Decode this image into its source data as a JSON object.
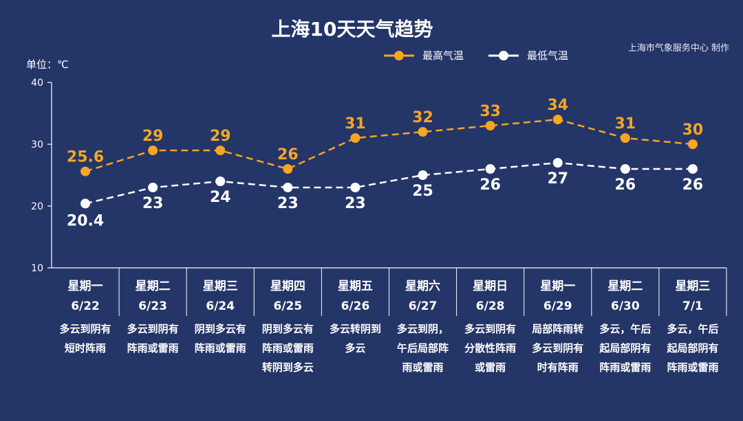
{
  "header": {
    "title": "上海10天天气趋势",
    "credit": "上海市气象服务中心 制作",
    "unit_label": "单位：℃"
  },
  "colors": {
    "background": "#243568",
    "high": "#f5a623",
    "low": "#ffffff",
    "axis": "#ffffff"
  },
  "chart_data": {
    "type": "line",
    "title": "上海10天天气趋势",
    "ylim": [
      10,
      40
    ],
    "yticks": [
      10,
      20,
      30,
      40
    ],
    "legend_position": "top-right",
    "grid": false,
    "x": [
      {
        "day": "星期一",
        "date": "6/22",
        "weather": [
          "多云到阴有",
          "短时阵雨"
        ]
      },
      {
        "day": "星期二",
        "date": "6/23",
        "weather": [
          "多云到阴有",
          "阵雨或雷雨"
        ]
      },
      {
        "day": "星期三",
        "date": "6/24",
        "weather": [
          "阴到多云有",
          "阵雨或雷雨"
        ]
      },
      {
        "day": "星期四",
        "date": "6/25",
        "weather": [
          "阴到多云有",
          "阵雨或雷雨",
          "转阴到多云"
        ]
      },
      {
        "day": "星期五",
        "date": "6/26",
        "weather": [
          "多云转阴到",
          "多云"
        ]
      },
      {
        "day": "星期六",
        "date": "6/27",
        "weather": [
          "多云到阴，",
          "午后局部阵",
          "雨或雷雨"
        ]
      },
      {
        "day": "星期日",
        "date": "6/28",
        "weather": [
          "多云到阴有",
          "分散性阵雨",
          "或雷雨"
        ]
      },
      {
        "day": "星期一",
        "date": "6/29",
        "weather": [
          "局部阵雨转",
          "多云到阴有",
          "时有阵雨"
        ]
      },
      {
        "day": "星期二",
        "date": "6/30",
        "weather": [
          "多云，午后",
          "起局部阴有",
          "阵雨或雷雨"
        ]
      },
      {
        "day": "星期三",
        "date": "7/1",
        "weather": [
          "多云，午后",
          "起局部阴有",
          "阵雨或雷雨"
        ]
      }
    ],
    "series": [
      {
        "name": "最高气温",
        "values": [
          25.6,
          29,
          29,
          26,
          31,
          32,
          33,
          34,
          31,
          30
        ],
        "labels": [
          "25.6",
          "29",
          "29",
          "26",
          "31",
          "32",
          "33",
          "34",
          "31",
          "30"
        ]
      },
      {
        "name": "最低气温",
        "values": [
          20.4,
          23,
          24,
          23,
          23,
          25,
          26,
          27,
          26,
          26
        ],
        "labels": [
          "20.4",
          "23",
          "24",
          "23",
          "23",
          "25",
          "26",
          "27",
          "26",
          "26"
        ]
      }
    ]
  }
}
